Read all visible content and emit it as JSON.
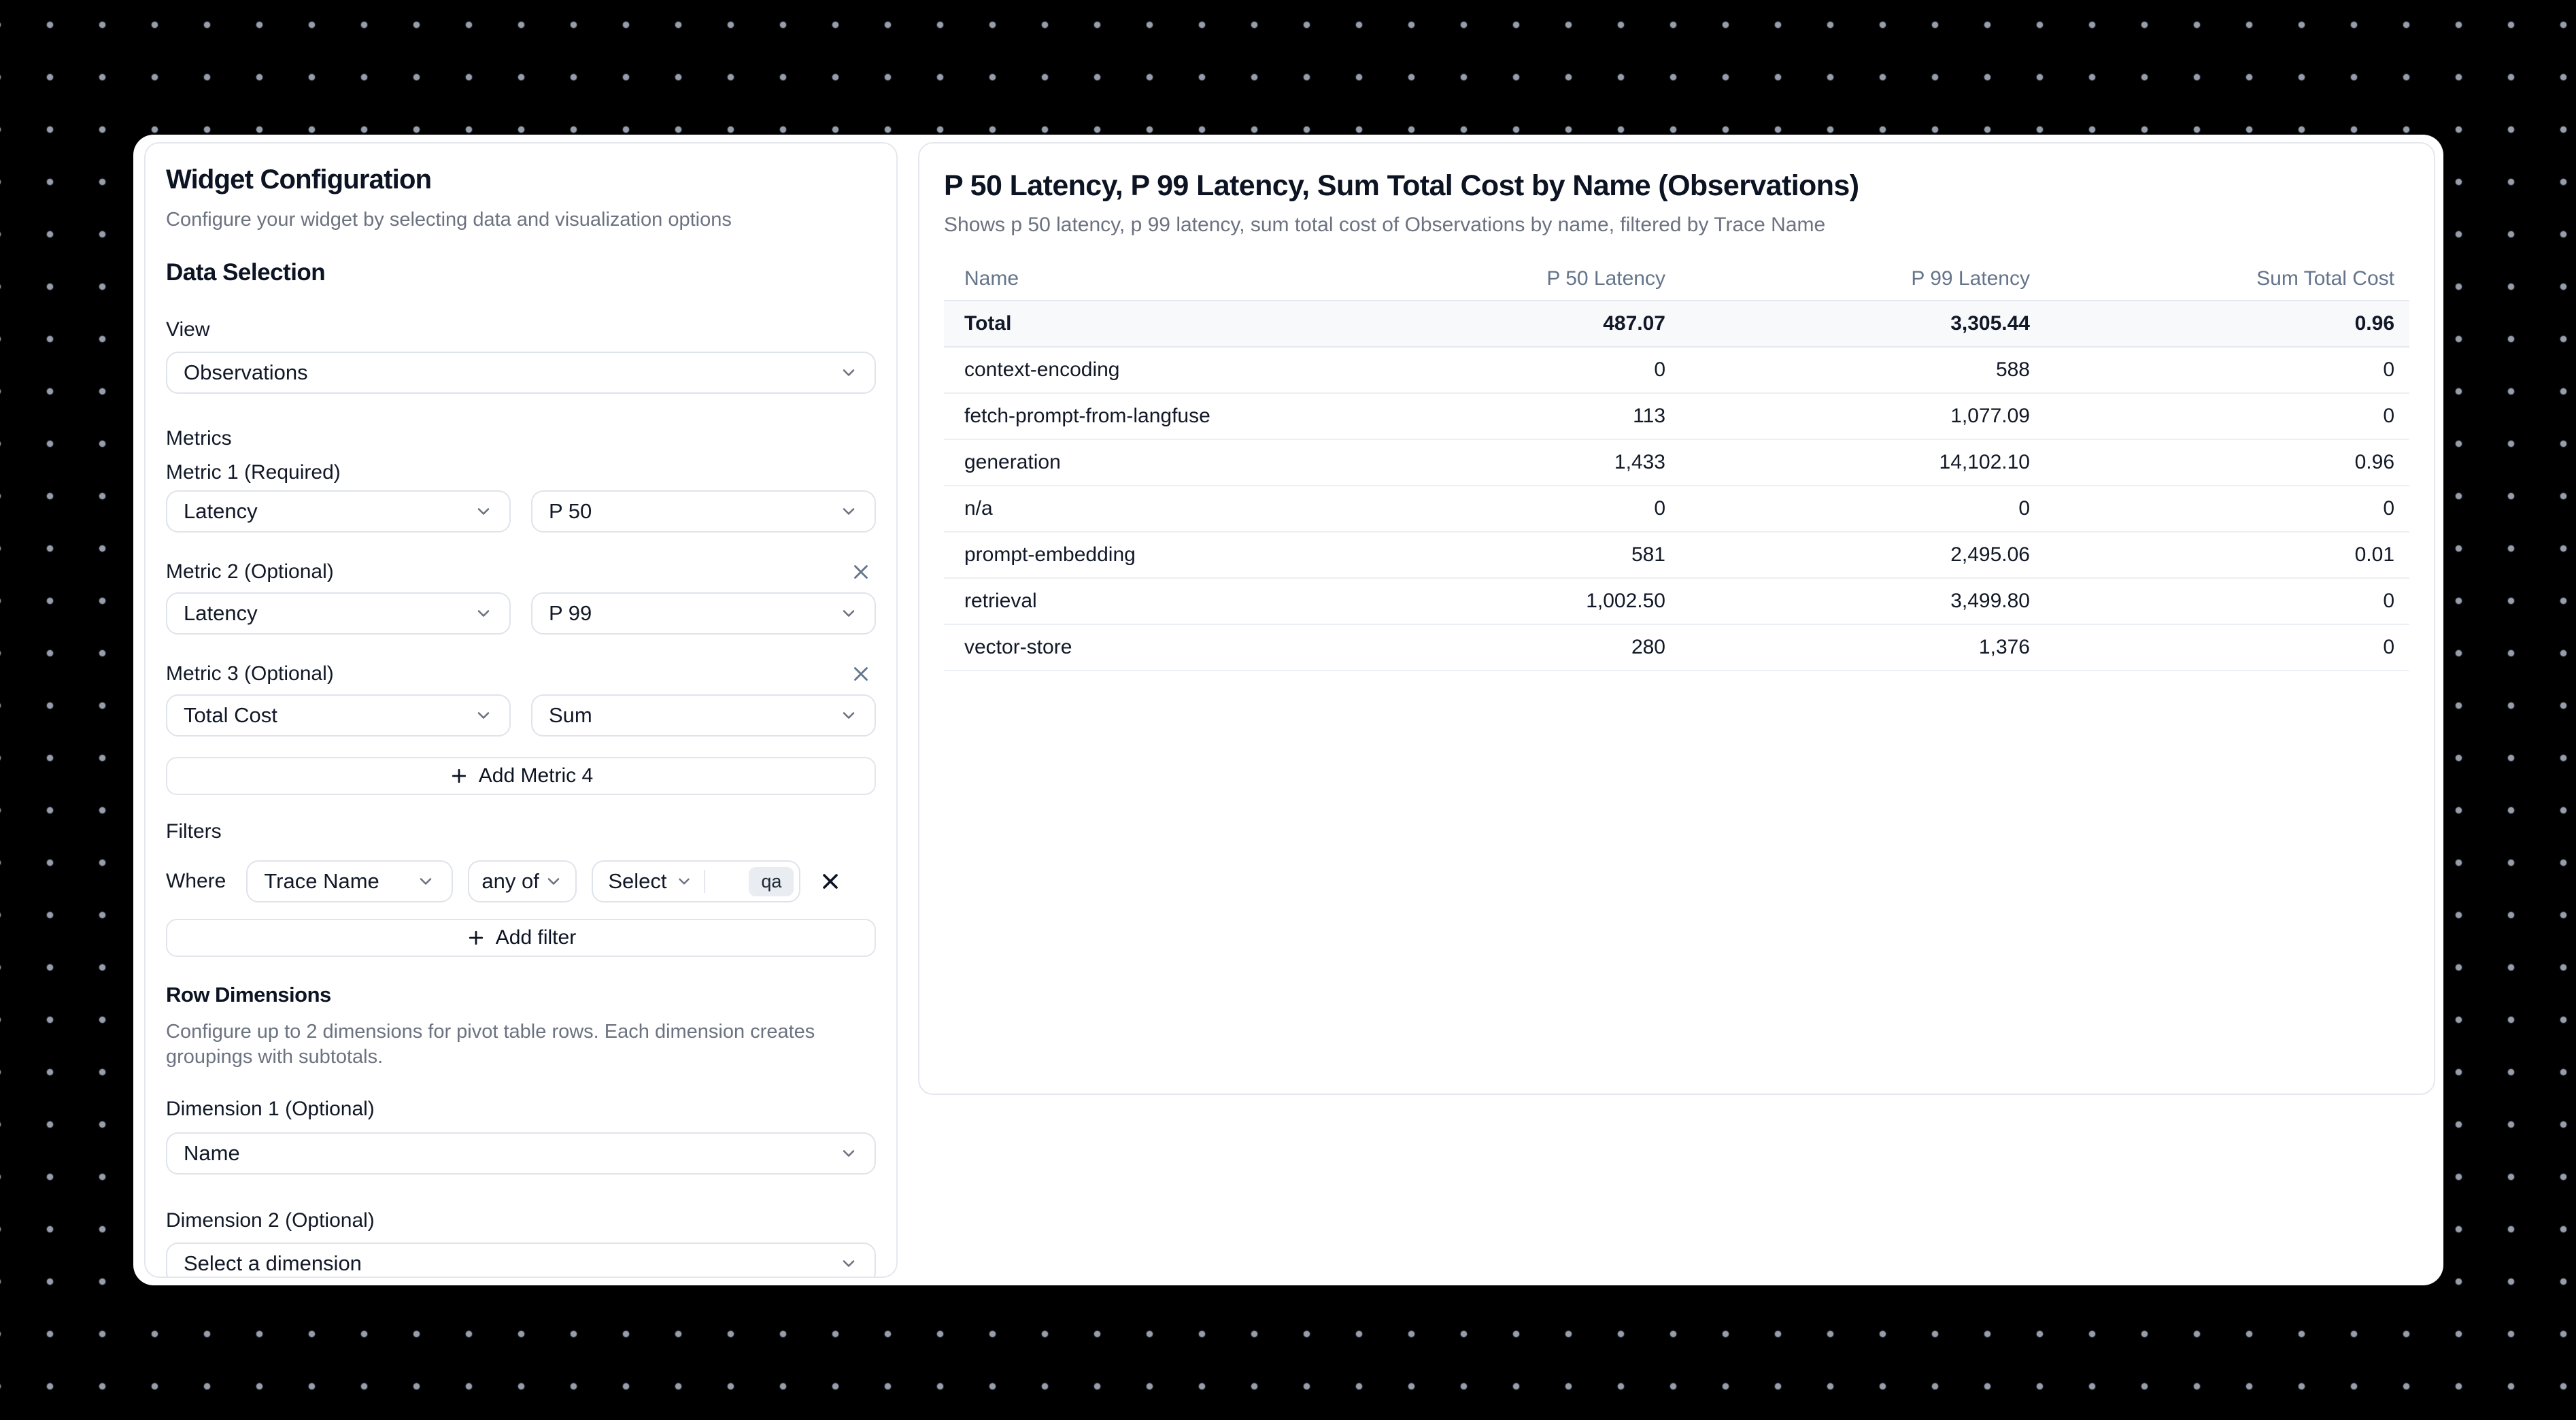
{
  "left_panel": {
    "title": "Widget Configuration",
    "subtitle": "Configure your widget by selecting data and visualization options",
    "data_selection_heading": "Data Selection",
    "view": {
      "label": "View",
      "value": "Observations"
    },
    "metrics": {
      "heading": "Metrics",
      "items": [
        {
          "label": "Metric 1 (Required)",
          "measure": "Latency",
          "aggregation": "P 50"
        },
        {
          "label": "Metric 2 (Optional)",
          "measure": "Latency",
          "aggregation": "P 99"
        },
        {
          "label": "Metric 3 (Optional)",
          "measure": "Total Cost",
          "aggregation": "Sum"
        }
      ],
      "add_button_label": "Add Metric 4"
    },
    "filters": {
      "heading": "Filters",
      "where_label": "Where",
      "column": "Trace Name",
      "operator": "any of",
      "value_placeholder": "Select",
      "value_tags": [
        "qa"
      ],
      "add_button_label": "Add filter"
    },
    "row_dimensions": {
      "heading": "Row Dimensions",
      "description": "Configure up to 2 dimensions for pivot table rows. Each dimension creates groupings with subtotals.",
      "dimension1": {
        "label": "Dimension 1 (Optional)",
        "value": "Name"
      },
      "dimension2": {
        "label": "Dimension 2 (Optional)",
        "value": "Select a dimension"
      }
    }
  },
  "preview_panel": {
    "title": "P 50 Latency, P 99 Latency, Sum Total Cost by Name (Observations)",
    "subtitle": "Shows p 50 latency, p 99 latency, sum total cost of Observations by name, filtered by Trace Name",
    "table": {
      "columns": [
        {
          "label": "Name",
          "align": "left"
        },
        {
          "label": "P 50 Latency",
          "align": "right"
        },
        {
          "label": "P 99 Latency",
          "align": "right"
        },
        {
          "label": "Sum Total Cost",
          "align": "right"
        }
      ],
      "total_row": {
        "name": "Total",
        "values": [
          "487.07",
          "3,305.44",
          "0.96"
        ]
      },
      "rows": [
        {
          "name": "context-encoding",
          "values": [
            "0",
            "588",
            "0"
          ]
        },
        {
          "name": "fetch-prompt-from-langfuse",
          "values": [
            "113",
            "1,077.09",
            "0"
          ]
        },
        {
          "name": "generation",
          "values": [
            "1,433",
            "14,102.10",
            "0.96"
          ]
        },
        {
          "name": "n/a",
          "values": [
            "0",
            "0",
            "0"
          ]
        },
        {
          "name": "prompt-embedding",
          "values": [
            "581",
            "2,495.06",
            "0.01"
          ]
        },
        {
          "name": "retrieval",
          "values": [
            "1,002.50",
            "3,499.80",
            "0"
          ]
        },
        {
          "name": "vector-store",
          "values": [
            "280",
            "1,376",
            "0"
          ]
        }
      ]
    }
  },
  "chart_data": {
    "type": "table",
    "title": "P 50 Latency, P 99 Latency, Sum Total Cost by Name (Observations)",
    "categories": [
      "Total",
      "context-encoding",
      "fetch-prompt-from-langfuse",
      "generation",
      "n/a",
      "prompt-embedding",
      "retrieval",
      "vector-store"
    ],
    "series": [
      {
        "name": "P 50 Latency",
        "values": [
          487.07,
          0,
          113,
          1433,
          0,
          581,
          1002.5,
          280
        ]
      },
      {
        "name": "P 99 Latency",
        "values": [
          3305.44,
          588,
          1077.09,
          14102.1,
          0,
          2495.06,
          3499.8,
          1376
        ]
      },
      {
        "name": "Sum Total Cost",
        "values": [
          0.96,
          0,
          0,
          0.96,
          0,
          0.01,
          0,
          0
        ]
      }
    ]
  },
  "colors": {
    "background": "#000000",
    "dot": "#9ea6b4",
    "card_border": "#e4e7ed",
    "heading_text": "#0c1322",
    "muted_text": "#6b7280",
    "total_row_bg": "#f8f9fb",
    "badge_bg": "#e9ecf1"
  }
}
